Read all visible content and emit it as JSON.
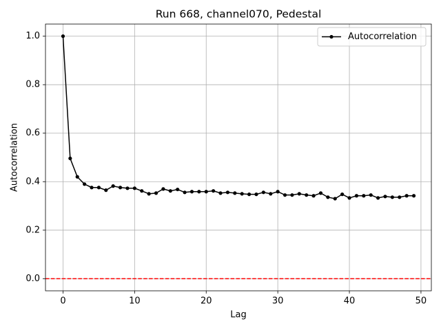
{
  "chart_data": {
    "type": "line",
    "title": "Run 668, channel070, Pedestal",
    "xlabel": "Lag",
    "ylabel": "Autocorrelation",
    "x": [
      0,
      1,
      2,
      3,
      4,
      5,
      6,
      7,
      8,
      9,
      10,
      11,
      12,
      13,
      14,
      15,
      16,
      17,
      18,
      19,
      20,
      21,
      22,
      23,
      24,
      25,
      26,
      27,
      28,
      29,
      30,
      31,
      32,
      33,
      34,
      35,
      36,
      37,
      38,
      39,
      40,
      41,
      42,
      43,
      44,
      45,
      46,
      47,
      48,
      49
    ],
    "series": [
      {
        "name": "Autocorrelation",
        "color": "#000000",
        "values": [
          1.0,
          0.496,
          0.42,
          0.39,
          0.376,
          0.376,
          0.365,
          0.382,
          0.376,
          0.373,
          0.373,
          0.362,
          0.35,
          0.353,
          0.37,
          0.362,
          0.368,
          0.356,
          0.359,
          0.359,
          0.359,
          0.362,
          0.353,
          0.356,
          0.353,
          0.35,
          0.348,
          0.348,
          0.356,
          0.35,
          0.359,
          0.345,
          0.345,
          0.35,
          0.345,
          0.342,
          0.353,
          0.336,
          0.33,
          0.348,
          0.333,
          0.342,
          0.342,
          0.345,
          0.333,
          0.339,
          0.336,
          0.336,
          0.342,
          0.342
        ]
      }
    ],
    "hline": {
      "value": 0,
      "color": "#ff0000"
    },
    "xlim": [
      -2.45,
      51.45
    ],
    "xticks": [
      0,
      10,
      20,
      30,
      40,
      50
    ],
    "ylim": [
      -0.05,
      1.05
    ],
    "yticks": [
      {
        "value": 0,
        "label": "0.0"
      },
      0.2,
      0.4,
      0.6,
      0.8,
      {
        "value": 1,
        "label": "1.0"
      }
    ],
    "grid": true,
    "legend": "upper right"
  }
}
